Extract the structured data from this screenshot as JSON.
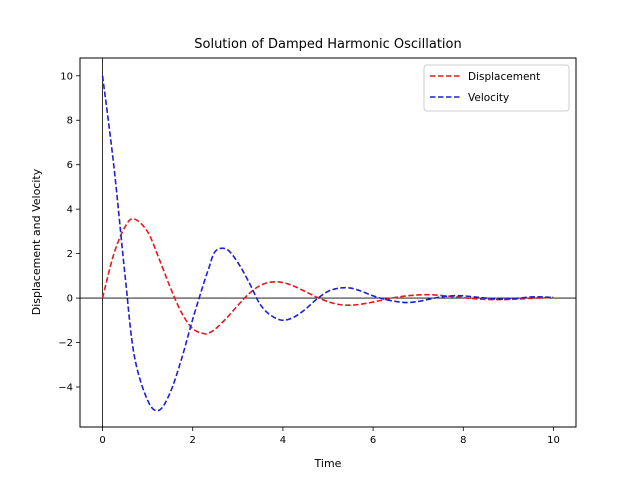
{
  "chart_data": {
    "type": "line",
    "title": "Solution of Damped Harmonic Oscillation",
    "xlabel": "Time",
    "ylabel": "Displacement and Velocity",
    "xlim": [
      -0.5,
      10.5
    ],
    "ylim": [
      -5.8,
      10.8
    ],
    "xticks": [
      0,
      2,
      4,
      6,
      8,
      10
    ],
    "xtick_labels": [
      "0",
      "2",
      "4",
      "6",
      "8",
      "10"
    ],
    "yticks": [
      -4,
      -2,
      0,
      2,
      4,
      6,
      8,
      10
    ],
    "ytick_labels": [
      "−4",
      "−2",
      "0",
      "2",
      "4",
      "6",
      "8",
      "10"
    ],
    "grid": false,
    "reference_lines": {
      "horizontal_at_y": 0,
      "vertical_at_x": 0
    },
    "legend": {
      "location": "top-right"
    },
    "x": [
      0.0,
      0.25,
      0.5,
      0.7,
      1.0,
      1.25,
      1.5,
      1.75,
      2.0,
      2.25,
      2.35,
      2.5,
      2.75,
      3.0,
      3.25,
      3.5,
      3.75,
      4.0,
      4.25,
      4.5,
      4.75,
      5.0,
      5.25,
      5.5,
      5.75,
      6.0,
      6.25,
      6.5,
      6.75,
      7.0,
      7.25,
      7.5,
      7.75,
      8.0,
      8.25,
      8.5,
      8.75,
      9.0,
      9.25,
      9.5,
      9.75,
      10.0
    ],
    "series": [
      {
        "name": "Displacement",
        "color": "#e41a1c",
        "line_style": "dashed",
        "values": [
          0.0,
          1.98,
          3.21,
          3.56,
          2.98,
          1.79,
          0.49,
          -0.65,
          -1.38,
          -1.6,
          -1.58,
          -1.39,
          -0.9,
          -0.33,
          0.2,
          0.57,
          0.72,
          0.7,
          0.53,
          0.29,
          0.04,
          -0.16,
          -0.29,
          -0.32,
          -0.27,
          -0.18,
          -0.07,
          0.03,
          0.1,
          0.14,
          0.15,
          0.12,
          0.07,
          0.02,
          -0.03,
          -0.06,
          -0.07,
          -0.06,
          -0.04,
          -0.01,
          0.01,
          0.03
        ]
      },
      {
        "name": "Velocity",
        "color": "#1f1fd6",
        "line_style": "dashed",
        "values": [
          10.0,
          5.95,
          1.0,
          -2.55,
          -4.6,
          -5.05,
          -4.25,
          -2.75,
          -0.95,
          0.7,
          1.3,
          2.1,
          2.2,
          1.6,
          0.7,
          -0.3,
          -0.8,
          -1.0,
          -0.85,
          -0.5,
          -0.05,
          0.3,
          0.45,
          0.45,
          0.3,
          0.1,
          -0.05,
          -0.15,
          -0.2,
          -0.15,
          -0.05,
          0.05,
          0.1,
          0.1,
          0.05,
          0.0,
          -0.05,
          -0.03,
          0.0,
          0.05,
          0.05,
          0.02
        ]
      }
    ]
  }
}
